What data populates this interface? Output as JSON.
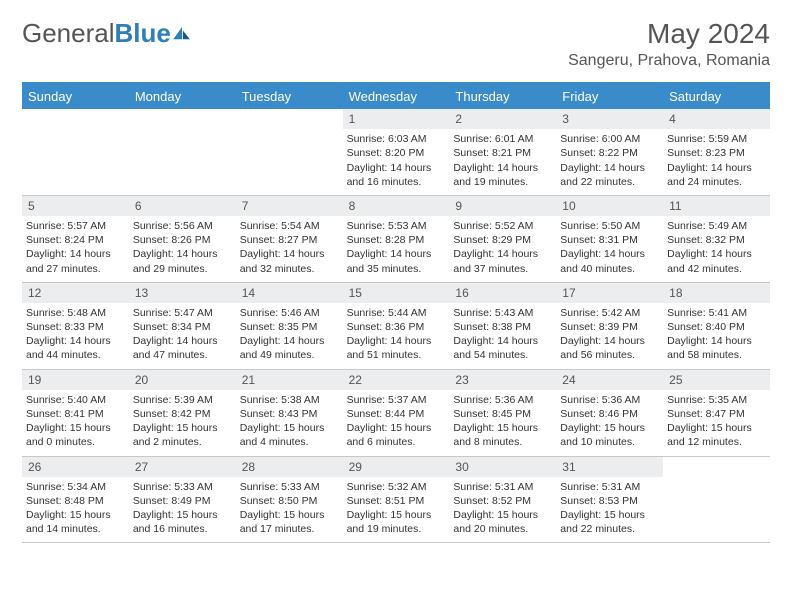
{
  "brand": {
    "name_part1": "General",
    "name_part2": "Blue"
  },
  "title": "May 2024",
  "location": "Sangeru, Prahova, Romania",
  "colors": {
    "header_bg": "#3a8bc9",
    "header_text": "#ffffff",
    "daynum_bg": "#ecedef",
    "text": "#333333",
    "brand_gray": "#555555",
    "brand_blue": "#2c7fb8"
  },
  "day_names": [
    "Sunday",
    "Monday",
    "Tuesday",
    "Wednesday",
    "Thursday",
    "Friday",
    "Saturday"
  ],
  "weeks": [
    [
      {
        "day": "",
        "sunrise": "",
        "sunset": "",
        "daylight1": "",
        "daylight2": ""
      },
      {
        "day": "",
        "sunrise": "",
        "sunset": "",
        "daylight1": "",
        "daylight2": ""
      },
      {
        "day": "",
        "sunrise": "",
        "sunset": "",
        "daylight1": "",
        "daylight2": ""
      },
      {
        "day": "1",
        "sunrise": "Sunrise: 6:03 AM",
        "sunset": "Sunset: 8:20 PM",
        "daylight1": "Daylight: 14 hours",
        "daylight2": "and 16 minutes."
      },
      {
        "day": "2",
        "sunrise": "Sunrise: 6:01 AM",
        "sunset": "Sunset: 8:21 PM",
        "daylight1": "Daylight: 14 hours",
        "daylight2": "and 19 minutes."
      },
      {
        "day": "3",
        "sunrise": "Sunrise: 6:00 AM",
        "sunset": "Sunset: 8:22 PM",
        "daylight1": "Daylight: 14 hours",
        "daylight2": "and 22 minutes."
      },
      {
        "day": "4",
        "sunrise": "Sunrise: 5:59 AM",
        "sunset": "Sunset: 8:23 PM",
        "daylight1": "Daylight: 14 hours",
        "daylight2": "and 24 minutes."
      }
    ],
    [
      {
        "day": "5",
        "sunrise": "Sunrise: 5:57 AM",
        "sunset": "Sunset: 8:24 PM",
        "daylight1": "Daylight: 14 hours",
        "daylight2": "and 27 minutes."
      },
      {
        "day": "6",
        "sunrise": "Sunrise: 5:56 AM",
        "sunset": "Sunset: 8:26 PM",
        "daylight1": "Daylight: 14 hours",
        "daylight2": "and 29 minutes."
      },
      {
        "day": "7",
        "sunrise": "Sunrise: 5:54 AM",
        "sunset": "Sunset: 8:27 PM",
        "daylight1": "Daylight: 14 hours",
        "daylight2": "and 32 minutes."
      },
      {
        "day": "8",
        "sunrise": "Sunrise: 5:53 AM",
        "sunset": "Sunset: 8:28 PM",
        "daylight1": "Daylight: 14 hours",
        "daylight2": "and 35 minutes."
      },
      {
        "day": "9",
        "sunrise": "Sunrise: 5:52 AM",
        "sunset": "Sunset: 8:29 PM",
        "daylight1": "Daylight: 14 hours",
        "daylight2": "and 37 minutes."
      },
      {
        "day": "10",
        "sunrise": "Sunrise: 5:50 AM",
        "sunset": "Sunset: 8:31 PM",
        "daylight1": "Daylight: 14 hours",
        "daylight2": "and 40 minutes."
      },
      {
        "day": "11",
        "sunrise": "Sunrise: 5:49 AM",
        "sunset": "Sunset: 8:32 PM",
        "daylight1": "Daylight: 14 hours",
        "daylight2": "and 42 minutes."
      }
    ],
    [
      {
        "day": "12",
        "sunrise": "Sunrise: 5:48 AM",
        "sunset": "Sunset: 8:33 PM",
        "daylight1": "Daylight: 14 hours",
        "daylight2": "and 44 minutes."
      },
      {
        "day": "13",
        "sunrise": "Sunrise: 5:47 AM",
        "sunset": "Sunset: 8:34 PM",
        "daylight1": "Daylight: 14 hours",
        "daylight2": "and 47 minutes."
      },
      {
        "day": "14",
        "sunrise": "Sunrise: 5:46 AM",
        "sunset": "Sunset: 8:35 PM",
        "daylight1": "Daylight: 14 hours",
        "daylight2": "and 49 minutes."
      },
      {
        "day": "15",
        "sunrise": "Sunrise: 5:44 AM",
        "sunset": "Sunset: 8:36 PM",
        "daylight1": "Daylight: 14 hours",
        "daylight2": "and 51 minutes."
      },
      {
        "day": "16",
        "sunrise": "Sunrise: 5:43 AM",
        "sunset": "Sunset: 8:38 PM",
        "daylight1": "Daylight: 14 hours",
        "daylight2": "and 54 minutes."
      },
      {
        "day": "17",
        "sunrise": "Sunrise: 5:42 AM",
        "sunset": "Sunset: 8:39 PM",
        "daylight1": "Daylight: 14 hours",
        "daylight2": "and 56 minutes."
      },
      {
        "day": "18",
        "sunrise": "Sunrise: 5:41 AM",
        "sunset": "Sunset: 8:40 PM",
        "daylight1": "Daylight: 14 hours",
        "daylight2": "and 58 minutes."
      }
    ],
    [
      {
        "day": "19",
        "sunrise": "Sunrise: 5:40 AM",
        "sunset": "Sunset: 8:41 PM",
        "daylight1": "Daylight: 15 hours",
        "daylight2": "and 0 minutes."
      },
      {
        "day": "20",
        "sunrise": "Sunrise: 5:39 AM",
        "sunset": "Sunset: 8:42 PM",
        "daylight1": "Daylight: 15 hours",
        "daylight2": "and 2 minutes."
      },
      {
        "day": "21",
        "sunrise": "Sunrise: 5:38 AM",
        "sunset": "Sunset: 8:43 PM",
        "daylight1": "Daylight: 15 hours",
        "daylight2": "and 4 minutes."
      },
      {
        "day": "22",
        "sunrise": "Sunrise: 5:37 AM",
        "sunset": "Sunset: 8:44 PM",
        "daylight1": "Daylight: 15 hours",
        "daylight2": "and 6 minutes."
      },
      {
        "day": "23",
        "sunrise": "Sunrise: 5:36 AM",
        "sunset": "Sunset: 8:45 PM",
        "daylight1": "Daylight: 15 hours",
        "daylight2": "and 8 minutes."
      },
      {
        "day": "24",
        "sunrise": "Sunrise: 5:36 AM",
        "sunset": "Sunset: 8:46 PM",
        "daylight1": "Daylight: 15 hours",
        "daylight2": "and 10 minutes."
      },
      {
        "day": "25",
        "sunrise": "Sunrise: 5:35 AM",
        "sunset": "Sunset: 8:47 PM",
        "daylight1": "Daylight: 15 hours",
        "daylight2": "and 12 minutes."
      }
    ],
    [
      {
        "day": "26",
        "sunrise": "Sunrise: 5:34 AM",
        "sunset": "Sunset: 8:48 PM",
        "daylight1": "Daylight: 15 hours",
        "daylight2": "and 14 minutes."
      },
      {
        "day": "27",
        "sunrise": "Sunrise: 5:33 AM",
        "sunset": "Sunset: 8:49 PM",
        "daylight1": "Daylight: 15 hours",
        "daylight2": "and 16 minutes."
      },
      {
        "day": "28",
        "sunrise": "Sunrise: 5:33 AM",
        "sunset": "Sunset: 8:50 PM",
        "daylight1": "Daylight: 15 hours",
        "daylight2": "and 17 minutes."
      },
      {
        "day": "29",
        "sunrise": "Sunrise: 5:32 AM",
        "sunset": "Sunset: 8:51 PM",
        "daylight1": "Daylight: 15 hours",
        "daylight2": "and 19 minutes."
      },
      {
        "day": "30",
        "sunrise": "Sunrise: 5:31 AM",
        "sunset": "Sunset: 8:52 PM",
        "daylight1": "Daylight: 15 hours",
        "daylight2": "and 20 minutes."
      },
      {
        "day": "31",
        "sunrise": "Sunrise: 5:31 AM",
        "sunset": "Sunset: 8:53 PM",
        "daylight1": "Daylight: 15 hours",
        "daylight2": "and 22 minutes."
      },
      {
        "day": "",
        "sunrise": "",
        "sunset": "",
        "daylight1": "",
        "daylight2": ""
      }
    ]
  ]
}
